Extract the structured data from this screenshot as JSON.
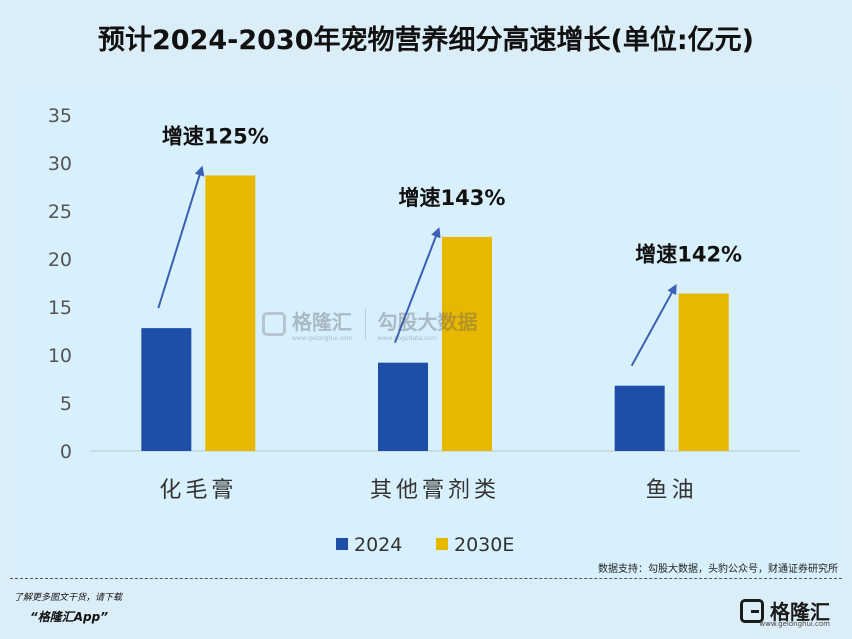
{
  "title": "预计2024-2030年宠物营养细分高速增长(单位:亿元)",
  "chart_data": {
    "type": "bar",
    "categories": [
      "化毛膏",
      "其他膏剂类",
      "鱼油"
    ],
    "series": [
      {
        "name": "2024",
        "values": [
          12.8,
          9.2,
          6.8
        ],
        "color": "#1e4fa8"
      },
      {
        "name": "2030E",
        "values": [
          28.7,
          22.3,
          16.4
        ],
        "color": "#e8b800"
      }
    ],
    "yticks": [
      0,
      5,
      10,
      15,
      20,
      25,
      30,
      35
    ],
    "ylim": [
      0,
      35
    ],
    "annotations": [
      "增速125%",
      "增速143%",
      "增速142%"
    ],
    "legend_position": "bottom-center"
  },
  "source": "数据支持：勾股大数据，头豹公众号，财通证券研究所",
  "watermark": {
    "left": "格隆汇",
    "left_url": "www.gelonghui.com",
    "right": "勾股大数据",
    "right_url": "www.gogudata.com"
  },
  "footer": {
    "note": "了解更多图文干货，请下载",
    "app": "“格隆汇App”"
  },
  "brand": {
    "name": "格隆汇",
    "url": "www.gelonghui.com"
  }
}
